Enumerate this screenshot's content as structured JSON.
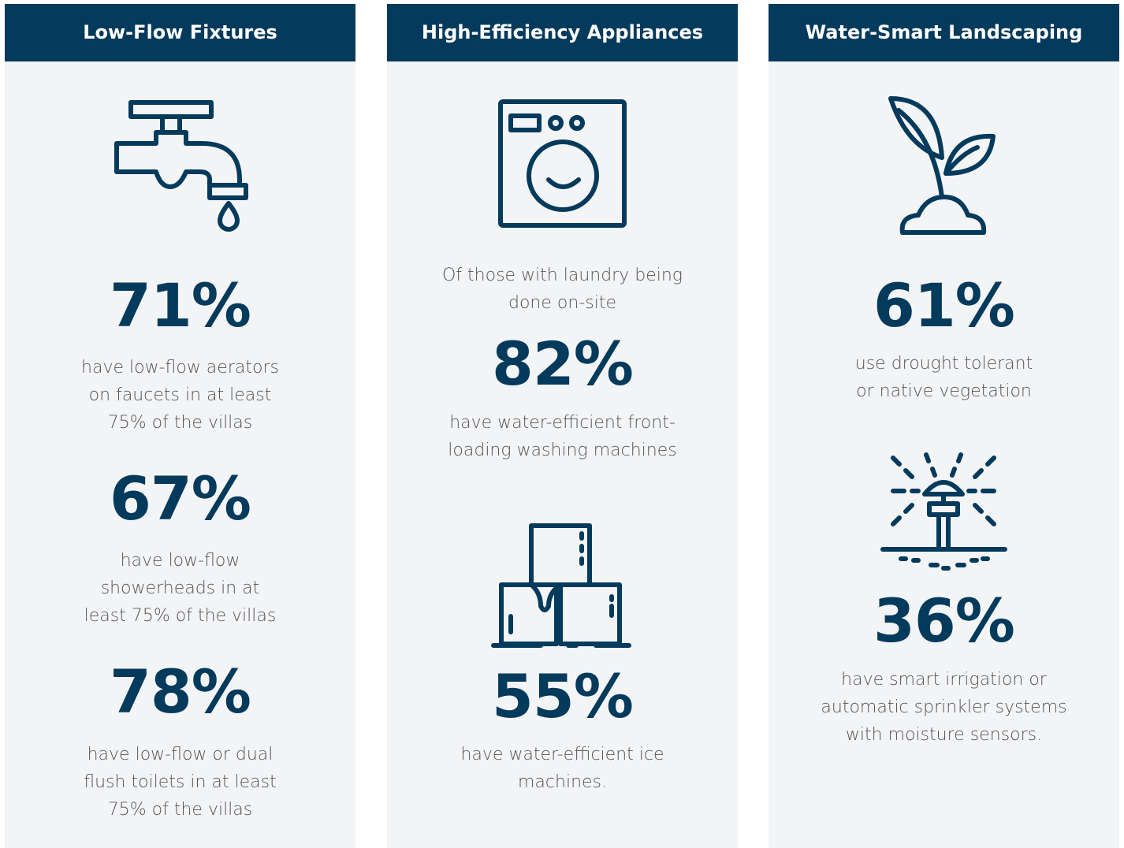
{
  "columns": [
    {
      "title": "Low-Flow Fixtures",
      "stats": [
        {
          "value": "71%",
          "lines": [
            "have low-flow aerators",
            "on faucets in at least",
            "75% of the villas"
          ]
        },
        {
          "value": "67%",
          "lines": [
            "have low-flow",
            "showerheads in at",
            "least 75% of the villas"
          ]
        },
        {
          "value": "78%",
          "lines": [
            "have low-flow or dual",
            "flush toilets in at least",
            "75% of the villas"
          ]
        }
      ]
    },
    {
      "title": "High-Efficiency Appliances",
      "intro": [
        "Of those with laundry being",
        "done on-site"
      ],
      "stats": [
        {
          "value": "82%",
          "lines": [
            "have water-efficient front-",
            "loading washing machines"
          ]
        },
        {
          "value": "55%",
          "lines": [
            "have water-efficient ice",
            "machines."
          ]
        }
      ]
    },
    {
      "title": "Water-Smart Landscaping",
      "stats": [
        {
          "value": "61%",
          "lines": [
            "use drought tolerant",
            "or native vegetation"
          ]
        },
        {
          "value": "36%",
          "lines": [
            "have smart irrigation or",
            "automatic sprinkler systems",
            "with moisture sensors."
          ]
        }
      ]
    }
  ]
}
